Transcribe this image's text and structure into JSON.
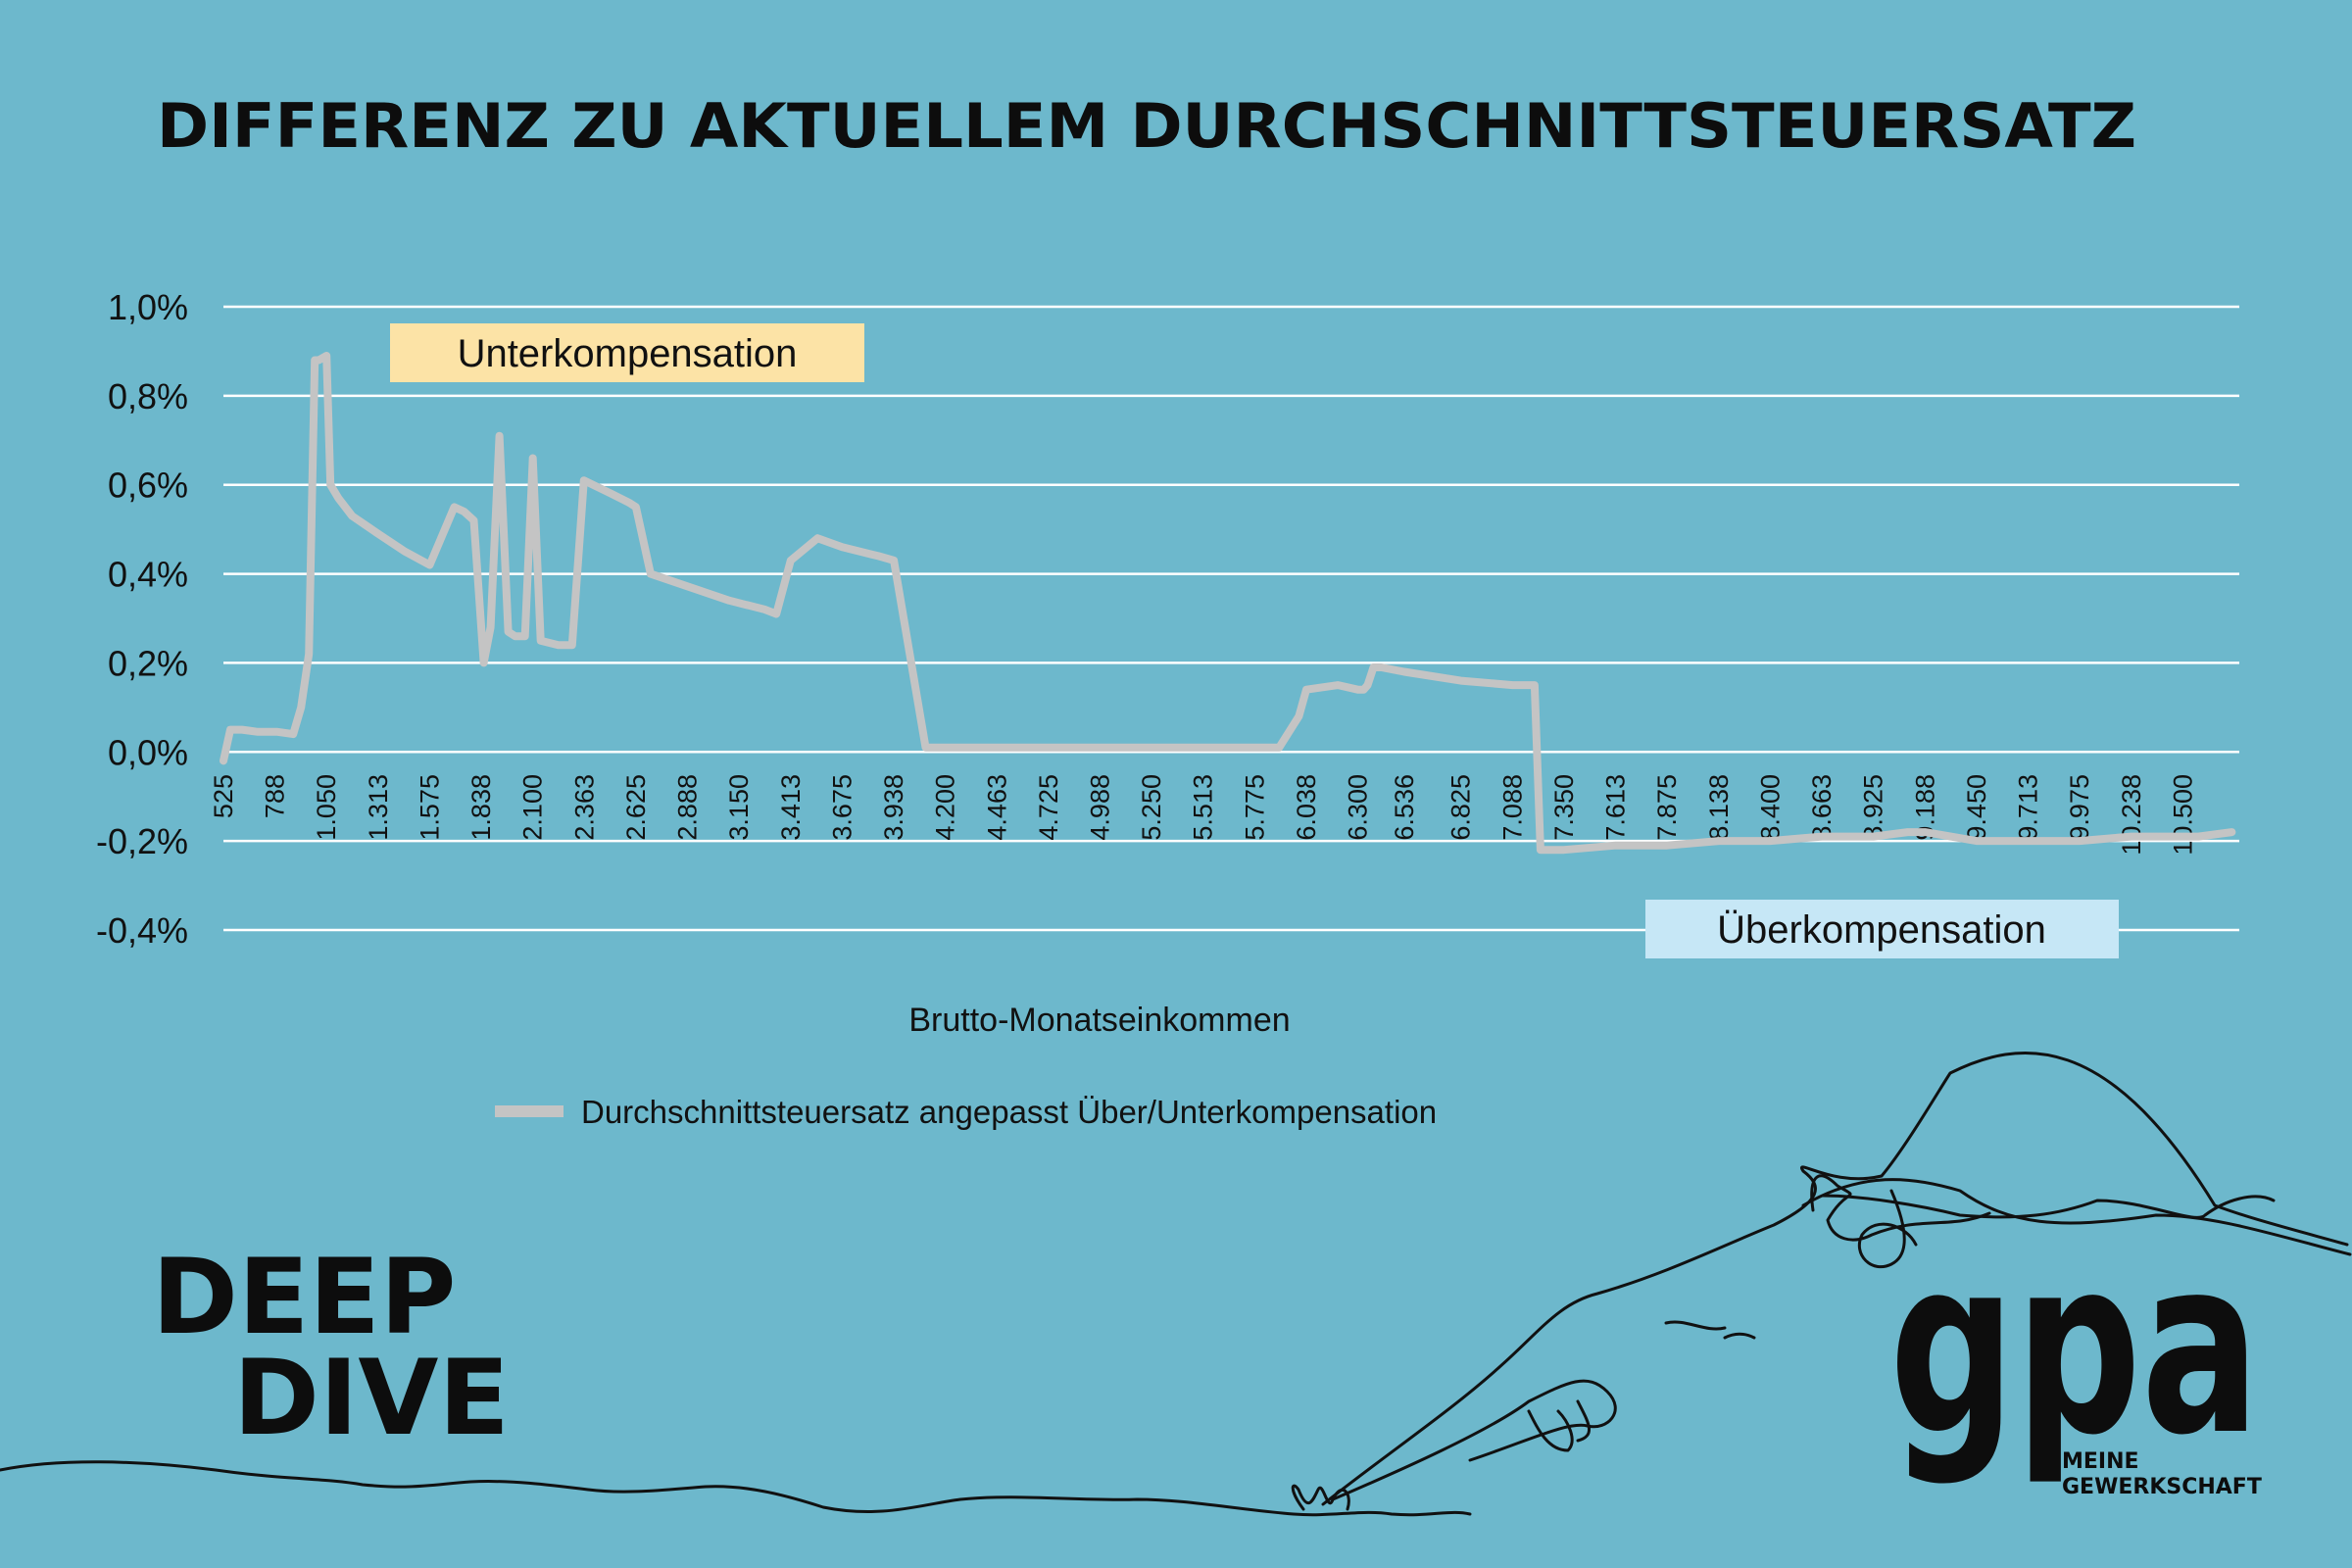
{
  "chart_data": {
    "type": "line",
    "title": "DIFFERENZ ZU AKTUELLEM DURCHSCHNITTSTEUERSATZ",
    "xlabel": "Brutto-Monatseinkommen",
    "ylabel": "",
    "ylim": [
      -0.4,
      1.0
    ],
    "yticks": [
      "1,0%",
      "0,8%",
      "0,6%",
      "0,4%",
      "0,2%",
      "0,0%",
      "-0,2%",
      "-0,4%"
    ],
    "ytick_values": [
      1.0,
      0.8,
      0.6,
      0.4,
      0.2,
      0.0,
      -0.2,
      -0.4
    ],
    "xlim": [
      525,
      10763
    ],
    "xticks": [
      "525",
      "788",
      "1.050",
      "1.313",
      "1.575",
      "1.838",
      "2.100",
      "2.363",
      "2.625",
      "2.888",
      "3.150",
      "3.413",
      "3.675",
      "3.938",
      "4.200",
      "4.463",
      "4.725",
      "4.988",
      "5.250",
      "5.513",
      "5.775",
      "6.038",
      "6.300",
      "6.536",
      "6.825",
      "7.088",
      "7.350",
      "7.613",
      "7.875",
      "8.138",
      "8.400",
      "8.663",
      "8.925",
      "9.188",
      "9.450",
      "9.713",
      "9.975",
      "10.238",
      "10.500"
    ],
    "xtick_values": [
      525,
      788,
      1050,
      1313,
      1575,
      1838,
      2100,
      2363,
      2625,
      2888,
      3150,
      3413,
      3675,
      3938,
      4200,
      4463,
      4725,
      4988,
      5250,
      5513,
      5775,
      6038,
      6300,
      6536,
      6825,
      7088,
      7350,
      7613,
      7875,
      8138,
      8400,
      8663,
      8925,
      9188,
      9450,
      9713,
      9975,
      10238,
      10500
    ],
    "grid": true,
    "legend_position": "bottom",
    "series": [
      {
        "name": "Durchschnittsteuersatz angepasst Über/Unterkompensation",
        "color": "#c4c4c4",
        "x": [
          525,
          560,
          620,
          700,
          800,
          880,
          920,
          960,
          990,
          1010,
          1050,
          1070,
          1110,
          1180,
          1313,
          1450,
          1575,
          1700,
          1750,
          1800,
          1850,
          1885,
          1930,
          1975,
          2010,
          2060,
          2100,
          2140,
          2230,
          2300,
          2360,
          2500,
          2590,
          2625,
          2700,
          2900,
          3100,
          3280,
          3340,
          3413,
          3550,
          3675,
          3860,
          3938,
          4100,
          4463,
          4988,
          5513,
          5750,
          5775,
          5900,
          6000,
          6038,
          6200,
          6300,
          6330,
          6350,
          6380,
          6420,
          6536,
          6825,
          7088,
          7200,
          7230,
          7260,
          7350,
          7613,
          7875,
          8138,
          8400,
          8663,
          8925,
          9100,
          9188,
          9450,
          9713,
          9975,
          10238,
          10500,
          10580,
          10750
        ],
        "values": [
          -0.02,
          0.05,
          0.05,
          0.045,
          0.045,
          0.04,
          0.1,
          0.22,
          0.88,
          0.88,
          0.89,
          0.6,
          0.57,
          0.53,
          0.49,
          0.45,
          0.42,
          0.55,
          0.54,
          0.52,
          0.2,
          0.28,
          0.71,
          0.27,
          0.26,
          0.26,
          0.66,
          0.25,
          0.24,
          0.24,
          0.61,
          0.58,
          0.56,
          0.55,
          0.4,
          0.37,
          0.34,
          0.32,
          0.31,
          0.43,
          0.48,
          0.46,
          0.44,
          0.43,
          0.01,
          0.01,
          0.01,
          0.01,
          0.01,
          0.01,
          0.01,
          0.08,
          0.14,
          0.15,
          0.14,
          0.14,
          0.15,
          0.19,
          0.19,
          0.18,
          0.16,
          0.15,
          0.15,
          -0.22,
          -0.22,
          -0.22,
          -0.21,
          -0.21,
          -0.2,
          -0.2,
          -0.19,
          -0.19,
          -0.18,
          -0.18,
          -0.2,
          -0.2,
          -0.2,
          -0.19,
          -0.19,
          -0.19,
          -0.18
        ]
      }
    ],
    "annotations": [
      {
        "text": "Unterkompensation",
        "box_color": "#fce3a6"
      },
      {
        "text": "Überkompensation",
        "box_color": "#c6e7f6"
      }
    ]
  },
  "branding": {
    "deep": "DEEP",
    "dive": "DIVE",
    "logo": "gpa",
    "tagline_line1": "MEINE",
    "tagline_line2": "GEWERKSCHAFT"
  },
  "colors": {
    "background": "#6db8cc",
    "gridline": "#ffffff",
    "series_line": "#c4c4c4",
    "text": "#111111"
  }
}
